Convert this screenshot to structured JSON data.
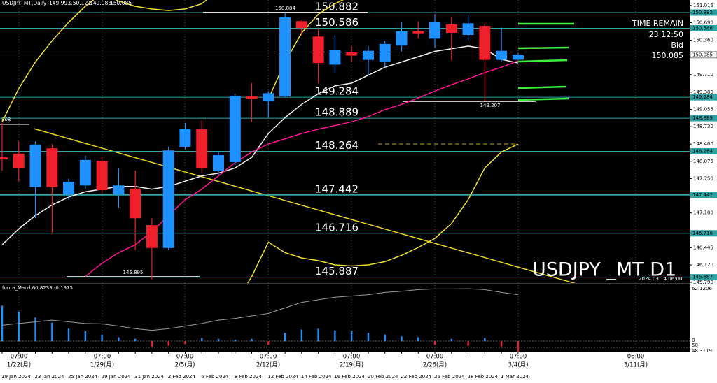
{
  "chart_data": {
    "type": "candlestick",
    "title": "USDJPY_MT,Daily",
    "categories": [
      "19 Jan 2024",
      null,
      "23 Jan 2024",
      null,
      "25 Jan 2024",
      null,
      "29 Jan 2024",
      null,
      "31 Jan 2024",
      null,
      "2 Feb 2024",
      null,
      "6 Feb 2024",
      null,
      "8 Feb 2024",
      null,
      "12 Feb 2024",
      null,
      "14 Feb 2024",
      null,
      "16 Feb 2024",
      null,
      "20 Feb 2024",
      null,
      "22 Feb 2024",
      null,
      "26 Feb 2024",
      null,
      "28 Feb 2024",
      null,
      "1 Mar 2024",
      null
    ],
    "open": [
      148.15,
      148.22,
      147.59,
      148.32,
      147.45,
      147.62,
      148.08,
      147.45,
      147.56,
      146.87,
      146.44,
      148.35,
      148.68,
      147.89,
      148.06,
      149.3,
      149.21,
      149.3,
      150.72,
      150.43,
      149.9,
      150.13,
      149.99,
      149.96,
      150.26,
      150.53,
      150.39,
      150.66,
      150.46,
      150.63,
      149.99,
      149.993
    ],
    "high": [
      148.8,
      148.45,
      148.45,
      148.4,
      147.75,
      148.18,
      148.15,
      147.95,
      147.9,
      147.0,
      148.35,
      148.8,
      148.85,
      148.25,
      149.35,
      149.55,
      149.4,
      150.88,
      150.75,
      150.6,
      150.45,
      150.25,
      150.25,
      150.35,
      150.7,
      150.72,
      150.85,
      150.8,
      150.84,
      150.7,
      150.6,
      150.121
    ],
    "low": [
      147.9,
      147.7,
      147.0,
      146.7,
      147.35,
      147.55,
      147.48,
      147.2,
      146.4,
      145.85,
      146.4,
      148.3,
      147.85,
      147.82,
      148.0,
      148.82,
      148.9,
      149.28,
      150.45,
      149.55,
      149.75,
      149.95,
      149.7,
      149.85,
      150.15,
      150.4,
      150.22,
      149.98,
      150.35,
      149.21,
      149.95,
      149.983
    ],
    "close": [
      148.11,
      147.95,
      148.39,
      147.59,
      147.69,
      148.1,
      147.53,
      147.62,
      147.0,
      146.44,
      148.28,
      148.68,
      147.95,
      148.19,
      149.31,
      149.25,
      149.36,
      150.79,
      150.59,
      149.93,
      150.17,
      150.07,
      150.16,
      150.29,
      150.53,
      150.49,
      150.7,
      150.5,
      150.68,
      149.99,
      150.16,
      150.085
    ],
    "up_color": "#1e90ff",
    "down_color": "#ef1f2b",
    "ylim": [
      145.65,
      151.08
    ],
    "yticks": [
      151.015,
      {
        "value": 150.69,
        "label": "150.690"
      },
      {
        "value": 150.36,
        "label": "150.360"
      },
      {
        "value": 149.71,
        "label": "149.710"
      },
      {
        "value": 149.38,
        "label": "149.380"
      },
      149.055,
      {
        "value": 148.73,
        "label": "148.730"
      },
      {
        "value": 148.4,
        "label": "148.400"
      },
      148.075,
      {
        "value": 147.75,
        "label": "147.750"
      },
      {
        "value": 147.1,
        "label": "147.100"
      },
      146.445,
      {
        "value": 146.12,
        "label": "146.120"
      },
      {
        "value": 145.79,
        "label": "145.790"
      }
    ],
    "levels": [
      150.882,
      150.586,
      149.284,
      148.889,
      148.264,
      147.442,
      146.716,
      145.887
    ],
    "level_color": "#2fa3a3",
    "bid": 150.085,
    "overlays": [
      {
        "color": "#f2f2f2",
        "values": [
          146.5,
          146.8,
          147.05,
          147.25,
          147.4,
          147.5,
          147.55,
          147.6,
          147.6,
          147.55,
          147.6,
          147.7,
          147.8,
          147.85,
          147.95,
          148.15,
          148.6,
          148.9,
          149.15,
          149.35,
          149.5,
          149.55,
          149.7,
          149.85,
          149.95,
          150.05,
          150.15,
          150.2,
          150.25,
          150.2,
          150.0,
          149.93
        ]
      },
      {
        "color": "#ff1493",
        "values": [
          null,
          null,
          null,
          null,
          null,
          145.9,
          146.15,
          146.35,
          146.5,
          146.75,
          147.05,
          147.35,
          147.55,
          147.8,
          148.05,
          148.25,
          148.4,
          148.5,
          148.6,
          148.68,
          148.75,
          148.82,
          148.92,
          149.05,
          149.15,
          149.27,
          149.4,
          149.52,
          149.63,
          149.75,
          149.85,
          149.97
        ]
      },
      {
        "color": "#f0e130",
        "values": [
          148.82,
          149.45,
          149.95,
          150.35,
          150.7,
          151.0,
          151.25,
          151.1,
          151.0,
          150.95,
          150.92,
          150.95,
          151.05,
          151.3,
          151.3,
          151.3,
          151.3,
          151.3,
          151.3,
          151.3,
          151.3,
          151.3,
          151.3,
          151.3,
          151.3,
          151.3,
          151.3,
          151.3,
          151.3,
          151.3,
          151.3,
          151.3
        ]
      },
      {
        "color": "#f0e130",
        "values": [
          null,
          null,
          null,
          null,
          null,
          null,
          null,
          null,
          null,
          null,
          null,
          null,
          null,
          null,
          null,
          null,
          149.25,
          149.95,
          150.5,
          150.85,
          151.05,
          151.2,
          null,
          null,
          null,
          null,
          null,
          null,
          null,
          null,
          null,
          null
        ]
      },
      {
        "color": "#f0e130",
        "values": [
          null,
          null,
          null,
          null,
          null,
          null,
          null,
          null,
          null,
          null,
          null,
          null,
          null,
          null,
          145.4,
          145.9,
          146.55,
          146.35,
          146.25,
          146.2,
          146.12,
          146.1,
          146.12,
          146.18,
          146.3,
          146.45,
          146.62,
          146.9,
          147.35,
          147.95,
          148.25,
          148.4
        ]
      }
    ],
    "marks": [
      {
        "label": "150.884",
        "value": 150.884
      },
      {
        "label": "149.207",
        "value": 149.207
      },
      {
        "label": "145.895",
        "value": 145.895
      }
    ],
    "cut_label": "808",
    "watermark": "USDJPY _MT D1",
    "future_time": "2024.03.14 06:00",
    "time_remain": "TIME REMAIN",
    "countdown": "23:12:50",
    "bid_label": "Bid",
    "time_markers": [
      {
        "time": "07:00",
        "date": "1/22(月)"
      },
      {
        "time": "07:00",
        "date": "1/29(月)"
      },
      {
        "time": "07:00",
        "date": "2/5(月)"
      },
      {
        "time": "07:00",
        "date": "2/12(月)"
      },
      {
        "time": "07:00",
        "date": "2/19(月)"
      },
      {
        "time": "07:00",
        "date": "2/26(月)"
      },
      {
        "time": "07:00",
        "date": "3/4(月)"
      },
      {
        "time": "06:00",
        "date": "3/11(月)"
      }
    ],
    "macd": {
      "title": "fuuta_Macd 60.8233 -0.1975",
      "labels": [
        "62.1206",
        "0",
        "50",
        "48.3119"
      ],
      "ylim": [
        -12,
        62.1206
      ],
      "histogram": [
        42,
        35,
        28,
        22,
        15,
        12,
        8,
        5,
        3,
        -6,
        -5,
        -3,
        4,
        3,
        2,
        3,
        -4,
        10,
        14,
        15,
        13,
        12,
        10,
        8,
        6,
        5,
        -4,
        3,
        -5,
        4,
        -6,
        -12
      ],
      "up_color": "#1e90ff",
      "down_color": "#ef1f2b",
      "signal": [
        19,
        21,
        23,
        25,
        23,
        21,
        20.6,
        18,
        15,
        13,
        15,
        18,
        21,
        25,
        27,
        30,
        33,
        39.5,
        46,
        49,
        52,
        53.5,
        55,
        57.7,
        59,
        61,
        61.8,
        61.8,
        62,
        61,
        57.7,
        55
      ],
      "signal_color": "#9a9a9a"
    }
  }
}
